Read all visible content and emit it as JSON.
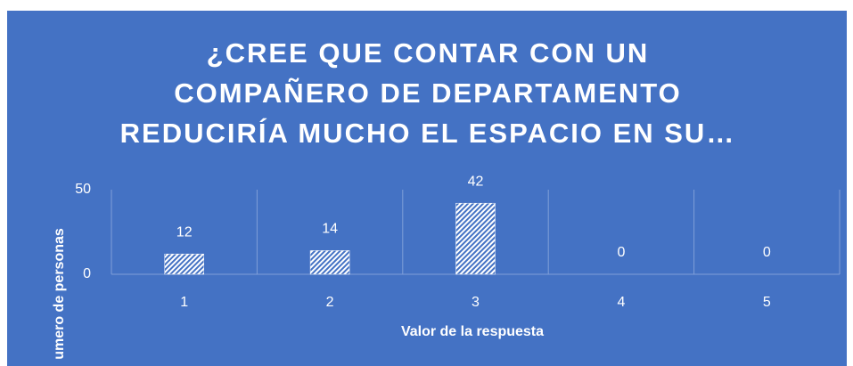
{
  "chart_data": {
    "type": "bar",
    "title": [
      "¿CREE QUE CONTAR CON UN",
      "COMPAÑERO DE DEPARTAMENTO",
      "REDUCIRÍA MUCHO EL ESPACIO EN SU…"
    ],
    "x_label": "Valor de la respuesta",
    "y_label": "umero de personas",
    "categories": [
      "1",
      "2",
      "3",
      "4",
      "5"
    ],
    "values": [
      12,
      14,
      42,
      0,
      0
    ],
    "color": "#4472c4",
    "ylim": [
      0,
      50
    ],
    "yticks": [
      0,
      50
    ],
    "grid": false
  }
}
